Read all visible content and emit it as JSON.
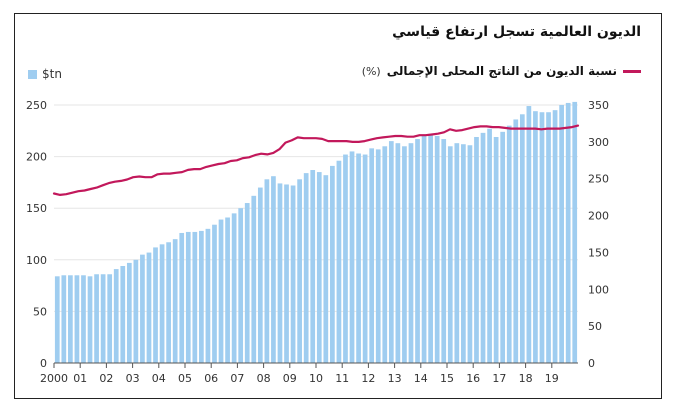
{
  "chart_data": {
    "type": "bar+line",
    "title": "الديون العالمية تسجل ارتفاع قياسي",
    "legend": {
      "bar_label": "$tn",
      "line_label": "نسبة الديون من الناتج المحلى الإجمالى",
      "line_unit": "(%)"
    },
    "colors": {
      "bars": "#9fcdf0",
      "line": "#c2185b"
    },
    "x_tick_labels": [
      "2000",
      "01",
      "02",
      "03",
      "04",
      "05",
      "06",
      "07",
      "08",
      "09",
      "10",
      "11",
      "12",
      "13",
      "14",
      "15",
      "16",
      "17",
      "18",
      "19"
    ],
    "y_left": {
      "min": 0,
      "max": 250,
      "ticks": [
        0,
        50,
        100,
        150,
        200,
        250
      ]
    },
    "y_right": {
      "min": 0,
      "max": 350,
      "ticks": [
        0,
        50,
        100,
        150,
        200,
        250,
        300,
        350
      ]
    },
    "series": [
      {
        "name": "$tn",
        "axis": "left",
        "type": "bar",
        "values": [
          84,
          85,
          85,
          85,
          85,
          84,
          86,
          86,
          86,
          91,
          94,
          97,
          100,
          105,
          107,
          112,
          115,
          117,
          120,
          126,
          127,
          127,
          128,
          130,
          134,
          139,
          141,
          145,
          150,
          155,
          162,
          170,
          178,
          181,
          174,
          173,
          172,
          178,
          184,
          187,
          185,
          182,
          191,
          196,
          202,
          205,
          203,
          202,
          208,
          207,
          210,
          215,
          213,
          210,
          213,
          217,
          220,
          222,
          220,
          217,
          210,
          213,
          212,
          211,
          219,
          223,
          227,
          219,
          224,
          230,
          236,
          241,
          249,
          244,
          243,
          243,
          245,
          250,
          252,
          253
        ]
      },
      {
        "name": "نسبة الديون من الناتج المحلى الإجمالى",
        "axis": "right",
        "type": "line",
        "values": [
          230,
          228,
          229,
          231,
          233,
          234,
          236,
          238,
          241,
          244,
          246,
          247,
          249,
          252,
          253,
          252,
          252,
          256,
          257,
          257,
          258,
          259,
          262,
          263,
          263,
          266,
          268,
          270,
          271,
          274,
          275,
          278,
          279,
          282,
          284,
          283,
          285,
          290,
          299,
          302,
          306,
          305,
          305,
          305,
          304,
          301,
          301,
          301,
          301,
          300,
          300,
          301,
          303,
          305,
          306,
          307,
          308,
          308,
          307,
          307,
          309,
          309,
          310,
          311,
          313,
          317,
          315,
          316,
          318,
          320,
          321,
          321,
          320,
          320,
          319,
          318,
          318,
          318,
          318,
          318,
          317,
          318,
          318,
          318,
          319,
          320,
          322
        ]
      }
    ]
  }
}
